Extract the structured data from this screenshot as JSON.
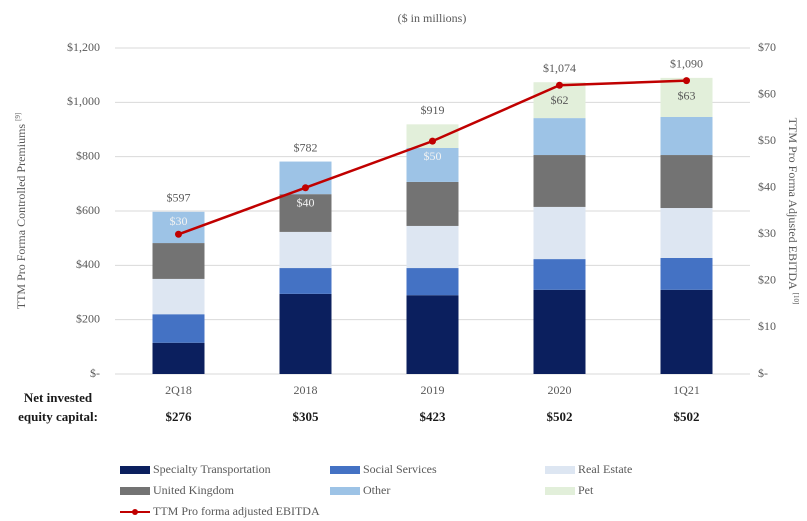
{
  "chart_data": {
    "type": "bar",
    "subtitle": "($ in millions)",
    "ylabel": "TTM Pro Forma Controlled Premiums",
    "ylabel_note": "[9]",
    "y2label": "TTM Pro Forma Adjusted EBITDA",
    "y2label_note": "[10]",
    "stacked": true,
    "categories": [
      "2Q18",
      "2018",
      "2019",
      "2020",
      "1Q21"
    ],
    "series": [
      {
        "name": "Specialty Transportation",
        "color": "#0b1f5e",
        "values": [
          115,
          295,
          290,
          310,
          310
        ]
      },
      {
        "name": "Social Services",
        "color": "#4472c4",
        "values": [
          105,
          95,
          100,
          113,
          117
        ]
      },
      {
        "name": "Real Estate",
        "color": "#dde6f2",
        "values": [
          130,
          133,
          155,
          192,
          184
        ]
      },
      {
        "name": "United Kingdom",
        "color": "#737373",
        "values": [
          132,
          139,
          162,
          191,
          195
        ]
      },
      {
        "name": "Other",
        "color": "#9dc3e6",
        "values": [
          115,
          120,
          125,
          136,
          140
        ]
      },
      {
        "name": "Pet",
        "color": "#e2efda",
        "values": [
          0,
          0,
          87,
          132,
          144
        ]
      },
      {
        "name": "TTM Pro forma adjusted EBITDA",
        "color": "#c00000",
        "type": "line",
        "axis": "y2",
        "values": [
          30,
          40,
          50,
          62,
          63
        ],
        "value_labels": [
          "$30",
          "$40",
          "$50",
          "$62",
          "$63"
        ]
      }
    ],
    "total_labels": [
      "$597",
      "$782",
      "$919",
      "$1,074",
      "$1,090"
    ],
    "ylim": [
      0,
      1200
    ],
    "yticks": [
      {
        "value": 0,
        "label": "$-"
      },
      {
        "value": 200,
        "label": "$200"
      },
      {
        "value": 400,
        "label": "$400"
      },
      {
        "value": 600,
        "label": "$600"
      },
      {
        "value": 800,
        "label": "$800"
      },
      {
        "value": 1000,
        "label": "$1,000"
      },
      {
        "value": 1200,
        "label": "$1,200"
      }
    ],
    "y2lim": [
      0,
      70
    ],
    "y2ticks": [
      {
        "value": 0,
        "label": "$-"
      },
      {
        "value": 10,
        "label": "$10"
      },
      {
        "value": 20,
        "label": "$20"
      },
      {
        "value": 30,
        "label": "$30"
      },
      {
        "value": 40,
        "label": "$40"
      },
      {
        "value": 50,
        "label": "$50"
      },
      {
        "value": 60,
        "label": "$60"
      },
      {
        "value": 70,
        "label": "$70"
      }
    ],
    "grid": true,
    "row_label": [
      "Net invested",
      "equity capital:"
    ],
    "row_values": [
      "$276",
      "$305",
      "$423",
      "$502",
      "$502"
    ]
  }
}
